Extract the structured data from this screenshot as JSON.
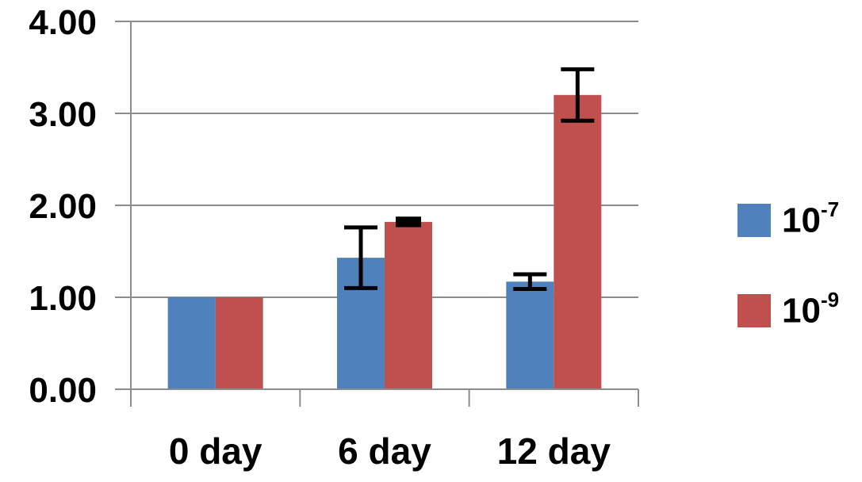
{
  "chart_data": {
    "type": "bar",
    "categories": [
      "0 day",
      "6 day",
      "12 day"
    ],
    "series": [
      {
        "name": "10-7",
        "legend_base": "10",
        "legend_exp": "-7",
        "color": "#4f81bd",
        "values": [
          1.0,
          1.43,
          1.17
        ],
        "error": [
          0,
          0.33,
          0.08
        ]
      },
      {
        "name": "10-9",
        "legend_base": "10",
        "legend_exp": "-9",
        "color": "#c0504d",
        "values": [
          1.0,
          1.82,
          3.2
        ],
        "error": [
          0,
          0.04,
          0.28
        ]
      }
    ],
    "ylim": [
      0,
      4
    ],
    "yticks": [
      "0.00",
      "1.00",
      "2.00",
      "3.00",
      "4.00"
    ],
    "grid": true,
    "legend_position": "right"
  }
}
